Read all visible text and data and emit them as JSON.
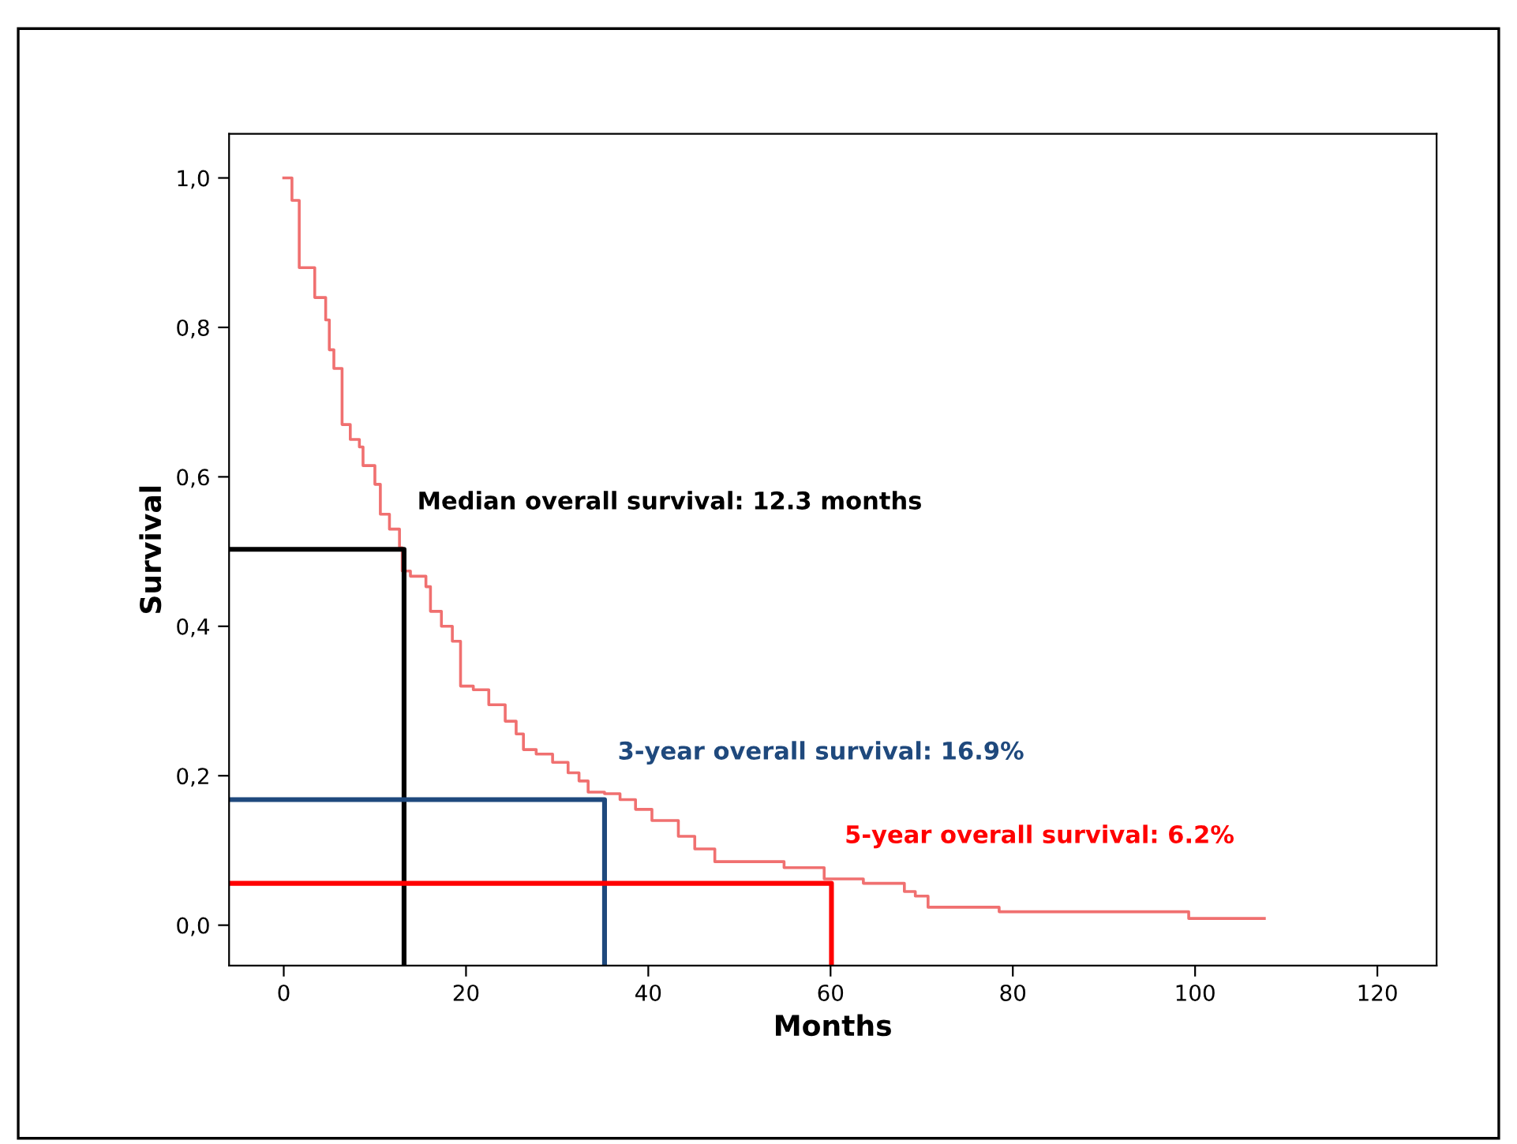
{
  "chart_data": {
    "type": "step",
    "xlabel": "Months",
    "ylabel": "Survival",
    "xlim": [
      -6,
      126.5
    ],
    "ylim": [
      -0.054,
      1.059
    ],
    "xticks": [
      0,
      20,
      40,
      60,
      80,
      100,
      120
    ],
    "yticks": [
      {
        "value": 0.0,
        "label": "0,0"
      },
      {
        "value": 0.2,
        "label": "0,2"
      },
      {
        "value": 0.4,
        "label": "0,4"
      },
      {
        "value": 0.6,
        "label": "0,6"
      },
      {
        "value": 0.8,
        "label": "0,8"
      },
      {
        "value": 1.0,
        "label": "1,0"
      }
    ],
    "grid": false,
    "legend": false,
    "series": [
      {
        "color": "#f07070",
        "x": [
          0,
          0.9,
          1.7,
          3.4,
          4.6,
          5.0,
          5.5,
          6.4,
          7.3,
          8.3,
          8.7,
          10.0,
          10.6,
          11.6,
          12.7,
          13.0,
          13.9,
          15.6,
          16.1,
          17.3,
          18.5,
          19.4,
          20.8,
          22.5,
          24.3,
          25.5,
          26.3,
          27.7,
          29.5,
          31.2,
          32.4,
          33.4,
          35.2,
          36.9,
          38.6,
          40.4,
          43.3,
          45.1,
          47.3,
          54.9,
          59.3,
          63.6,
          68.1,
          69.3,
          70.7,
          78.5,
          99.3,
          107.6
        ],
        "values": [
          1.0,
          0.97,
          0.88,
          0.84,
          0.81,
          0.77,
          0.745,
          0.67,
          0.65,
          0.64,
          0.615,
          0.59,
          0.55,
          0.53,
          0.505,
          0.474,
          0.467,
          0.453,
          0.42,
          0.4,
          0.38,
          0.32,
          0.315,
          0.295,
          0.273,
          0.256,
          0.235,
          0.229,
          0.218,
          0.204,
          0.193,
          0.178,
          0.176,
          0.168,
          0.155,
          0.14,
          0.119,
          0.102,
          0.085,
          0.077,
          0.062,
          0.056,
          0.045,
          0.039,
          0.024,
          0.018,
          0.009,
          0.009
        ]
      },
      {
        "type": "line",
        "color": "#000000",
        "x": [
          -6,
          13.2,
          13.2
        ],
        "values": [
          0.503,
          0.503,
          -0.054
        ]
      },
      {
        "type": "line",
        "color": "#1f497d",
        "x": [
          -6,
          35.2,
          35.2
        ],
        "values": [
          0.168,
          0.168,
          -0.054
        ]
      },
      {
        "type": "line",
        "color": "#ff0000",
        "x": [
          -6,
          60.1,
          60.1
        ],
        "values": [
          0.056,
          0.056,
          -0.054
        ]
      }
    ],
    "annotations": [
      {
        "text": "Median overall survival: 12.3 months",
        "x": 13.2,
        "y": 0.503
      },
      {
        "text": "3-year overall survival: 16.9%",
        "x": 35.2,
        "y": 0.168
      },
      {
        "text": "5-year overall survival: 6.2%",
        "x": 60.1,
        "y": 0.056
      }
    ]
  }
}
